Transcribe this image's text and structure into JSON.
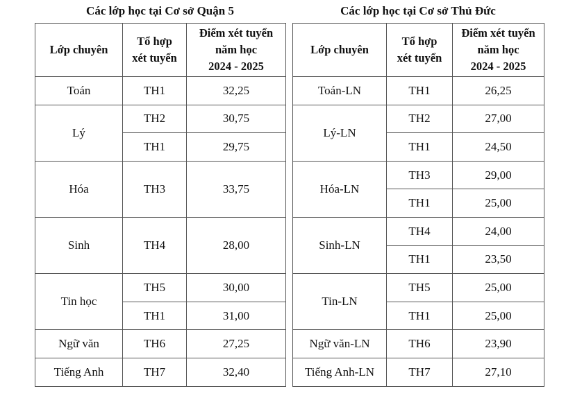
{
  "left_table": {
    "title": "Các lớp học tại Cơ sở Quận 5",
    "header": {
      "class": "Lớp chuyên",
      "combo": [
        "Tổ hợp",
        "xét tuyển"
      ],
      "score": [
        "Điểm xét tuyển",
        "năm học",
        "2024 - 2025"
      ]
    },
    "rows": [
      {
        "class": "Toán",
        "entries": [
          {
            "combo": "TH1",
            "score": "32,25"
          }
        ]
      },
      {
        "class": "Lý",
        "entries": [
          {
            "combo": "TH2",
            "score": "30,75"
          },
          {
            "combo": "TH1",
            "score": "29,75"
          }
        ]
      },
      {
        "class": "Hóa",
        "entries": [
          {
            "combo": "TH3",
            "score": "33,75"
          }
        ]
      },
      {
        "class": "Sinh",
        "entries": [
          {
            "combo": "TH4",
            "score": "28,00"
          }
        ]
      },
      {
        "class": "Tin học",
        "entries": [
          {
            "combo": "TH5",
            "score": "30,00"
          },
          {
            "combo": "TH1",
            "score": "31,00"
          }
        ]
      },
      {
        "class": "Ngữ văn",
        "entries": [
          {
            "combo": "TH6",
            "score": "27,25"
          }
        ]
      },
      {
        "class": "Tiếng Anh",
        "entries": [
          {
            "combo": "TH7",
            "score": "32,40"
          }
        ]
      }
    ]
  },
  "right_table": {
    "title": "Các lớp học tại Cơ sở Thủ Đức",
    "header": {
      "class": "Lớp chuyên",
      "combo": [
        "Tổ hợp",
        "xét tuyển"
      ],
      "score": [
        "Điểm xét tuyển",
        "năm học",
        "2024 - 2025"
      ]
    },
    "rows": [
      {
        "class": "Toán-LN",
        "entries": [
          {
            "combo": "TH1",
            "score": "26,25"
          }
        ]
      },
      {
        "class": "Lý-LN",
        "entries": [
          {
            "combo": "TH2",
            "score": "27,00"
          },
          {
            "combo": "TH1",
            "score": "24,50"
          }
        ]
      },
      {
        "class": "Hóa-LN",
        "entries": [
          {
            "combo": "TH3",
            "score": "29,00"
          },
          {
            "combo": "TH1",
            "score": "25,00"
          }
        ]
      },
      {
        "class": "Sinh-LN",
        "entries": [
          {
            "combo": "TH4",
            "score": "24,00"
          },
          {
            "combo": "TH1",
            "score": "23,50"
          }
        ]
      },
      {
        "class": "Tin-LN",
        "entries": [
          {
            "combo": "TH5",
            "score": "25,00"
          },
          {
            "combo": "TH1",
            "score": "25,00"
          }
        ]
      },
      {
        "class": "Ngữ văn-LN",
        "entries": [
          {
            "combo": "TH6",
            "score": "23,90"
          }
        ]
      },
      {
        "class": "Tiếng Anh-LN",
        "entries": [
          {
            "combo": "TH7",
            "score": "27,10"
          }
        ]
      }
    ]
  }
}
